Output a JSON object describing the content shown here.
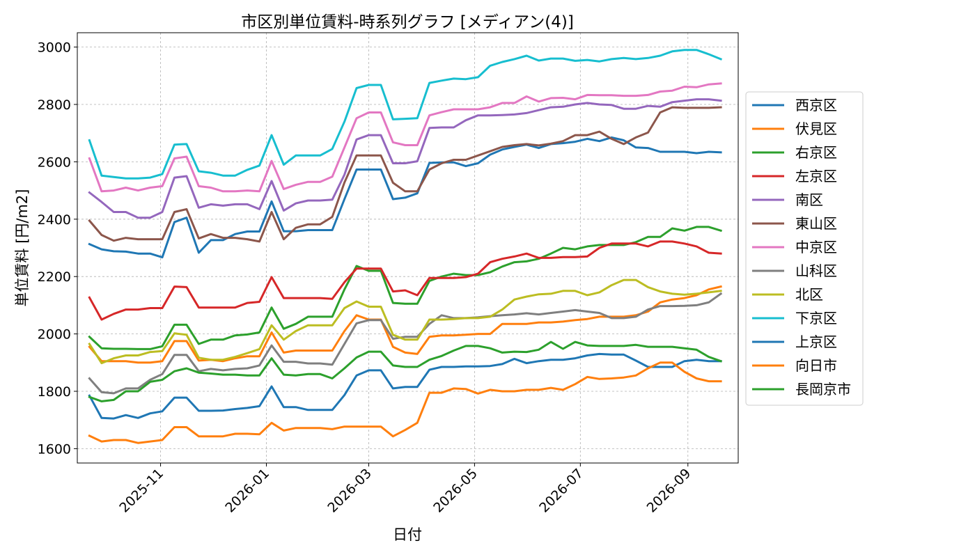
{
  "chart_data": {
    "type": "line",
    "title": "市区別単位賃料-時系列グラフ [メディアン(4)]",
    "xlabel": "日付",
    "ylabel": "単位賃料 [円/m2]",
    "xlim": [
      "2025-09-14",
      "2026-09-30"
    ],
    "ylim": [
      1550,
      3050
    ],
    "yticks": [
      1600,
      1800,
      2000,
      2200,
      2400,
      2600,
      2800,
      3000
    ],
    "xticks": [
      "2025-11-01",
      "2026-01-01",
      "2026-03-01",
      "2026-05-01",
      "2026-07-01",
      "2026-09-01"
    ],
    "xtick_labels": [
      "2025-11",
      "2026-01",
      "2026-03",
      "2026-05",
      "2026-07",
      "2026-09"
    ],
    "grid": true,
    "legend_position": "right-outside",
    "x": [
      "2025-09-21",
      "2025-09-28",
      "2025-10-05",
      "2025-10-12",
      "2025-10-19",
      "2025-10-26",
      "2025-11-02",
      "2025-11-09",
      "2025-11-16",
      "2025-11-23",
      "2025-11-30",
      "2025-12-07",
      "2025-12-14",
      "2025-12-21",
      "2025-12-28",
      "2026-01-04",
      "2026-01-11",
      "2026-01-18",
      "2026-01-25",
      "2026-02-01",
      "2026-02-08",
      "2026-02-15",
      "2026-02-22",
      "2026-03-01",
      "2026-03-08",
      "2026-03-15",
      "2026-03-22",
      "2026-03-29",
      "2026-04-05",
      "2026-04-12",
      "2026-04-19",
      "2026-04-26",
      "2026-05-03",
      "2026-05-10",
      "2026-05-17",
      "2026-05-24",
      "2026-05-31",
      "2026-06-07",
      "2026-06-14",
      "2026-06-21",
      "2026-06-28",
      "2026-07-05",
      "2026-07-12",
      "2026-07-19",
      "2026-07-26",
      "2026-08-02",
      "2026-08-09",
      "2026-08-16",
      "2026-08-23",
      "2026-08-30",
      "2026-09-06",
      "2026-09-13",
      "2026-09-20"
    ],
    "series": [
      {
        "name": "西京区",
        "color": "#1f77b4",
        "values": [
          2313,
          2295,
          2288,
          2287,
          2280,
          2280,
          2267,
          2390,
          2405,
          2283,
          2327,
          2327,
          2348,
          2357,
          2357,
          2462,
          2358,
          2358,
          2362,
          2362,
          2362,
          2470,
          2573,
          2573,
          2573,
          2470,
          2475,
          2490,
          2596,
          2598,
          2598,
          2585,
          2595,
          2625,
          2643,
          2652,
          2660,
          2648,
          2662,
          2665,
          2670,
          2680,
          2672,
          2685,
          2675,
          2650,
          2648,
          2635,
          2635,
          2635,
          2630,
          2635,
          2633
        ]
      },
      {
        "name": "伏見区",
        "color": "#ff7f0e",
        "values": [
          1955,
          1905,
          1905,
          1905,
          1900,
          1900,
          1905,
          1975,
          1975,
          1907,
          1910,
          1905,
          1915,
          1922,
          1922,
          2005,
          1935,
          1942,
          1942,
          1942,
          1942,
          2010,
          2065,
          2050,
          2050,
          1955,
          1935,
          1930,
          1990,
          1995,
          1995,
          1997,
          2000,
          2000,
          2035,
          2035,
          2035,
          2040,
          2040,
          2043,
          2048,
          2052,
          2060,
          2060,
          2060,
          2065,
          2078,
          2110,
          2120,
          2125,
          2135,
          2155,
          2165
        ]
      },
      {
        "name": "右京区",
        "color": "#2ca02c",
        "values": [
          1990,
          1950,
          1948,
          1948,
          1947,
          1947,
          1957,
          2032,
          2032,
          1965,
          1980,
          1980,
          1995,
          1998,
          2005,
          2092,
          2018,
          2035,
          2060,
          2060,
          2060,
          2155,
          2237,
          2220,
          2220,
          2108,
          2105,
          2105,
          2185,
          2200,
          2210,
          2205,
          2205,
          2215,
          2235,
          2250,
          2253,
          2262,
          2280,
          2300,
          2295,
          2305,
          2310,
          2310,
          2310,
          2320,
          2338,
          2338,
          2368,
          2360,
          2373,
          2373,
          2360
        ]
      },
      {
        "name": "左京区",
        "color": "#d62728",
        "values": [
          2127,
          2050,
          2070,
          2085,
          2085,
          2090,
          2090,
          2165,
          2163,
          2092,
          2092,
          2092,
          2092,
          2108,
          2112,
          2198,
          2125,
          2125,
          2125,
          2125,
          2122,
          2180,
          2228,
          2228,
          2228,
          2148,
          2152,
          2135,
          2195,
          2195,
          2195,
          2198,
          2210,
          2250,
          2262,
          2270,
          2280,
          2265,
          2265,
          2268,
          2268,
          2270,
          2300,
          2315,
          2315,
          2315,
          2305,
          2322,
          2322,
          2315,
          2305,
          2283,
          2280
        ]
      },
      {
        "name": "南区",
        "color": "#9467bd",
        "values": [
          2493,
          2460,
          2425,
          2425,
          2405,
          2405,
          2425,
          2545,
          2550,
          2440,
          2452,
          2447,
          2452,
          2452,
          2435,
          2533,
          2430,
          2455,
          2465,
          2465,
          2468,
          2555,
          2678,
          2693,
          2693,
          2595,
          2595,
          2602,
          2718,
          2720,
          2720,
          2745,
          2762,
          2762,
          2763,
          2765,
          2770,
          2780,
          2790,
          2792,
          2800,
          2805,
          2800,
          2798,
          2785,
          2785,
          2795,
          2792,
          2808,
          2813,
          2818,
          2818,
          2813
        ]
      },
      {
        "name": "東山区",
        "color": "#8c564b",
        "values": [
          2395,
          2345,
          2325,
          2335,
          2330,
          2330,
          2330,
          2425,
          2435,
          2333,
          2348,
          2335,
          2335,
          2330,
          2322,
          2425,
          2330,
          2370,
          2382,
          2382,
          2408,
          2528,
          2622,
          2622,
          2622,
          2527,
          2497,
          2497,
          2573,
          2595,
          2607,
          2607,
          2622,
          2637,
          2652,
          2658,
          2662,
          2657,
          2663,
          2672,
          2693,
          2693,
          2705,
          2680,
          2662,
          2685,
          2702,
          2772,
          2790,
          2788,
          2788,
          2788,
          2790
        ]
      },
      {
        "name": "中京区",
        "color": "#e377c2",
        "values": [
          2612,
          2497,
          2500,
          2510,
          2500,
          2510,
          2515,
          2612,
          2618,
          2515,
          2510,
          2497,
          2497,
          2500,
          2497,
          2603,
          2505,
          2520,
          2530,
          2530,
          2548,
          2650,
          2752,
          2772,
          2772,
          2668,
          2658,
          2658,
          2762,
          2773,
          2783,
          2783,
          2783,
          2790,
          2805,
          2805,
          2828,
          2810,
          2822,
          2823,
          2818,
          2833,
          2832,
          2832,
          2830,
          2830,
          2833,
          2845,
          2848,
          2862,
          2860,
          2870,
          2873
        ]
      },
      {
        "name": "山科区",
        "color": "#7f7f7f",
        "values": [
          1845,
          1797,
          1793,
          1810,
          1810,
          1840,
          1860,
          1927,
          1927,
          1870,
          1878,
          1873,
          1878,
          1880,
          1890,
          1960,
          1903,
          1903,
          1897,
          1897,
          1893,
          1965,
          2037,
          2048,
          2048,
          1983,
          1990,
          1990,
          2035,
          2065,
          2055,
          2055,
          2058,
          2062,
          2065,
          2068,
          2072,
          2068,
          2073,
          2078,
          2083,
          2078,
          2073,
          2055,
          2055,
          2060,
          2085,
          2097,
          2097,
          2098,
          2100,
          2110,
          2140
        ]
      },
      {
        "name": "北区",
        "color": "#bcbd22",
        "values": [
          1965,
          1898,
          1915,
          1925,
          1925,
          1937,
          1940,
          2002,
          1997,
          1917,
          1910,
          1910,
          1920,
          1933,
          1947,
          2030,
          1980,
          2010,
          2030,
          2030,
          2030,
          2090,
          2113,
          2095,
          2095,
          1997,
          1980,
          1980,
          2050,
          2050,
          2052,
          2055,
          2055,
          2060,
          2085,
          2120,
          2130,
          2138,
          2140,
          2150,
          2150,
          2135,
          2145,
          2170,
          2188,
          2188,
          2163,
          2148,
          2140,
          2137,
          2140,
          2145,
          2150
        ]
      },
      {
        "name": "下京区",
        "color": "#17becf",
        "values": [
          2675,
          2552,
          2547,
          2542,
          2542,
          2545,
          2557,
          2660,
          2662,
          2567,
          2562,
          2552,
          2552,
          2572,
          2587,
          2693,
          2590,
          2622,
          2622,
          2622,
          2645,
          2740,
          2857,
          2868,
          2868,
          2748,
          2750,
          2752,
          2875,
          2883,
          2890,
          2888,
          2895,
          2935,
          2948,
          2958,
          2970,
          2953,
          2960,
          2960,
          2952,
          2955,
          2950,
          2958,
          2962,
          2958,
          2962,
          2970,
          2985,
          2990,
          2990,
          2975,
          2958
        ]
      },
      {
        "name": "上京区",
        "color": "#1f77b4",
        "values": [
          1785,
          1707,
          1705,
          1717,
          1707,
          1723,
          1730,
          1778,
          1778,
          1732,
          1732,
          1733,
          1738,
          1742,
          1748,
          1817,
          1745,
          1745,
          1735,
          1735,
          1735,
          1787,
          1855,
          1873,
          1873,
          1810,
          1815,
          1815,
          1875,
          1885,
          1885,
          1887,
          1887,
          1888,
          1895,
          1913,
          1898,
          1905,
          1910,
          1910,
          1915,
          1925,
          1930,
          1928,
          1928,
          1907,
          1885,
          1885,
          1885,
          1905,
          1910,
          1905,
          1905
        ]
      },
      {
        "name": "向日市",
        "color": "#ff7f0e",
        "values": [
          1645,
          1625,
          1630,
          1630,
          1620,
          1625,
          1630,
          1675,
          1675,
          1643,
          1643,
          1643,
          1652,
          1652,
          1650,
          1690,
          1663,
          1672,
          1672,
          1672,
          1668,
          1677,
          1677,
          1677,
          1677,
          1643,
          1665,
          1690,
          1795,
          1795,
          1810,
          1808,
          1792,
          1805,
          1800,
          1800,
          1805,
          1805,
          1812,
          1805,
          1825,
          1850,
          1843,
          1845,
          1848,
          1855,
          1880,
          1900,
          1900,
          1868,
          1845,
          1835,
          1835
        ]
      },
      {
        "name": "長岡京市",
        "color": "#2ca02c",
        "values": [
          1780,
          1765,
          1770,
          1800,
          1800,
          1833,
          1840,
          1870,
          1880,
          1865,
          1862,
          1858,
          1858,
          1855,
          1855,
          1915,
          1858,
          1855,
          1860,
          1860,
          1845,
          1880,
          1918,
          1938,
          1938,
          1890,
          1885,
          1885,
          1910,
          1923,
          1942,
          1958,
          1958,
          1950,
          1935,
          1938,
          1937,
          1945,
          1972,
          1948,
          1972,
          1960,
          1958,
          1958,
          1958,
          1962,
          1955,
          1955,
          1955,
          1950,
          1945,
          1920,
          1905
        ]
      }
    ]
  }
}
